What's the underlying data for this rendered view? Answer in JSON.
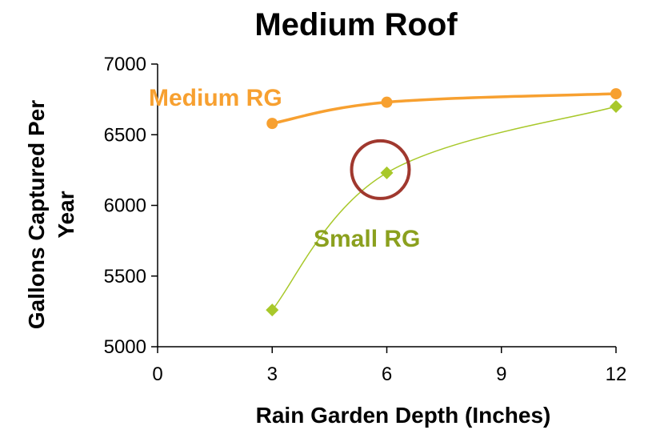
{
  "chart_data": {
    "type": "line",
    "title": "Medium Roof",
    "xlabel": "Rain Garden Depth (Inches)",
    "ylabel_lines": [
      "Gallons Captured Per",
      "Year"
    ],
    "xlim": [
      0,
      12
    ],
    "ylim": [
      5000,
      7000
    ],
    "x_ticks": [
      "0",
      "3",
      "6",
      "9",
      "12"
    ],
    "y_ticks": [
      "5000",
      "5500",
      "6000",
      "6500",
      "7000"
    ],
    "series": [
      {
        "name": "Medium RG",
        "color": "#F7A030",
        "marker": "circle",
        "x": [
          3,
          6,
          12
        ],
        "y": [
          6580,
          6730,
          6790
        ]
      },
      {
        "name": "Small RG",
        "color": "#A8C82A",
        "label_color": "#8BA01E",
        "marker": "diamond",
        "x": [
          3,
          6,
          12
        ],
        "y": [
          5260,
          6230,
          6700
        ]
      }
    ],
    "annotations": [
      {
        "type": "circle",
        "color": "#A0382E",
        "x": 6,
        "y": 6230
      }
    ],
    "grid": false,
    "legend": "inline labels"
  }
}
